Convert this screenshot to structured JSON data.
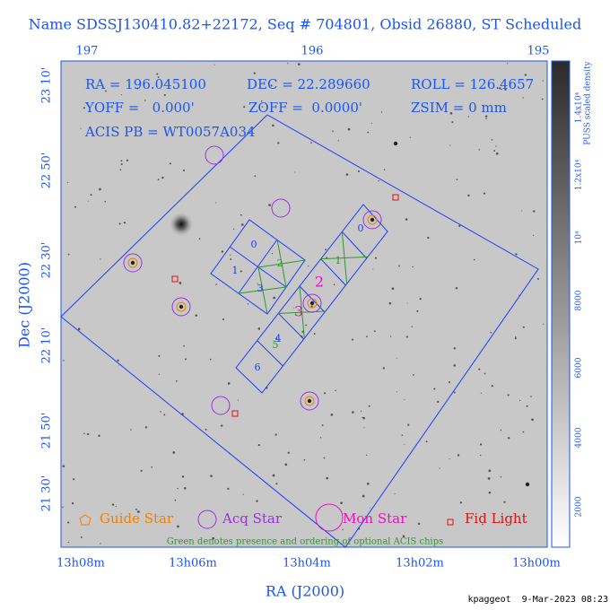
{
  "header": {
    "title": "Name SDSSJ130410.82+22172, Seq # 704801, Obsid 26880, ST Scheduled"
  },
  "info": [
    "RA = 196.045100",
    "DEC = 22.289660",
    "ROLL = 126.4657",
    "YOFF =   0.000'",
    "ZOFF =  0.0000'",
    "ZSIM = 0 mm",
    "ACIS PB = WT0057A034"
  ],
  "axes": {
    "top_ticks": [
      "197",
      "196",
      "195"
    ],
    "left_ticks": [
      "23 10'",
      "22 50'",
      "22 30'",
      "22 10'",
      "21 50'",
      "21 30'"
    ],
    "bottom_ticks": [
      "13h08m",
      "13h06m",
      "13h04m",
      "13h02m",
      "13h00m"
    ],
    "x_label": "RA (J2000)",
    "y_label": "Dec (J2000)"
  },
  "colorbar": {
    "label": "PUSS scaled density",
    "ticks": [
      "2000",
      "4000",
      "6000",
      "8000",
      "10⁴",
      "1.2x10⁴",
      "1.4x10⁴"
    ]
  },
  "chip_labels": [
    "0",
    "1",
    "2",
    "3",
    "0",
    "1",
    "4",
    "5",
    "6"
  ],
  "star_labels": [
    "2",
    "3"
  ],
  "legend": [
    "Guide Star",
    "Acq Star",
    "Mon Star",
    "Fid Light"
  ],
  "note": "Green denotes presence and ordering of optional ACIS chips",
  "footer": "kpaggeot  9-Mar-2023 08:23"
}
